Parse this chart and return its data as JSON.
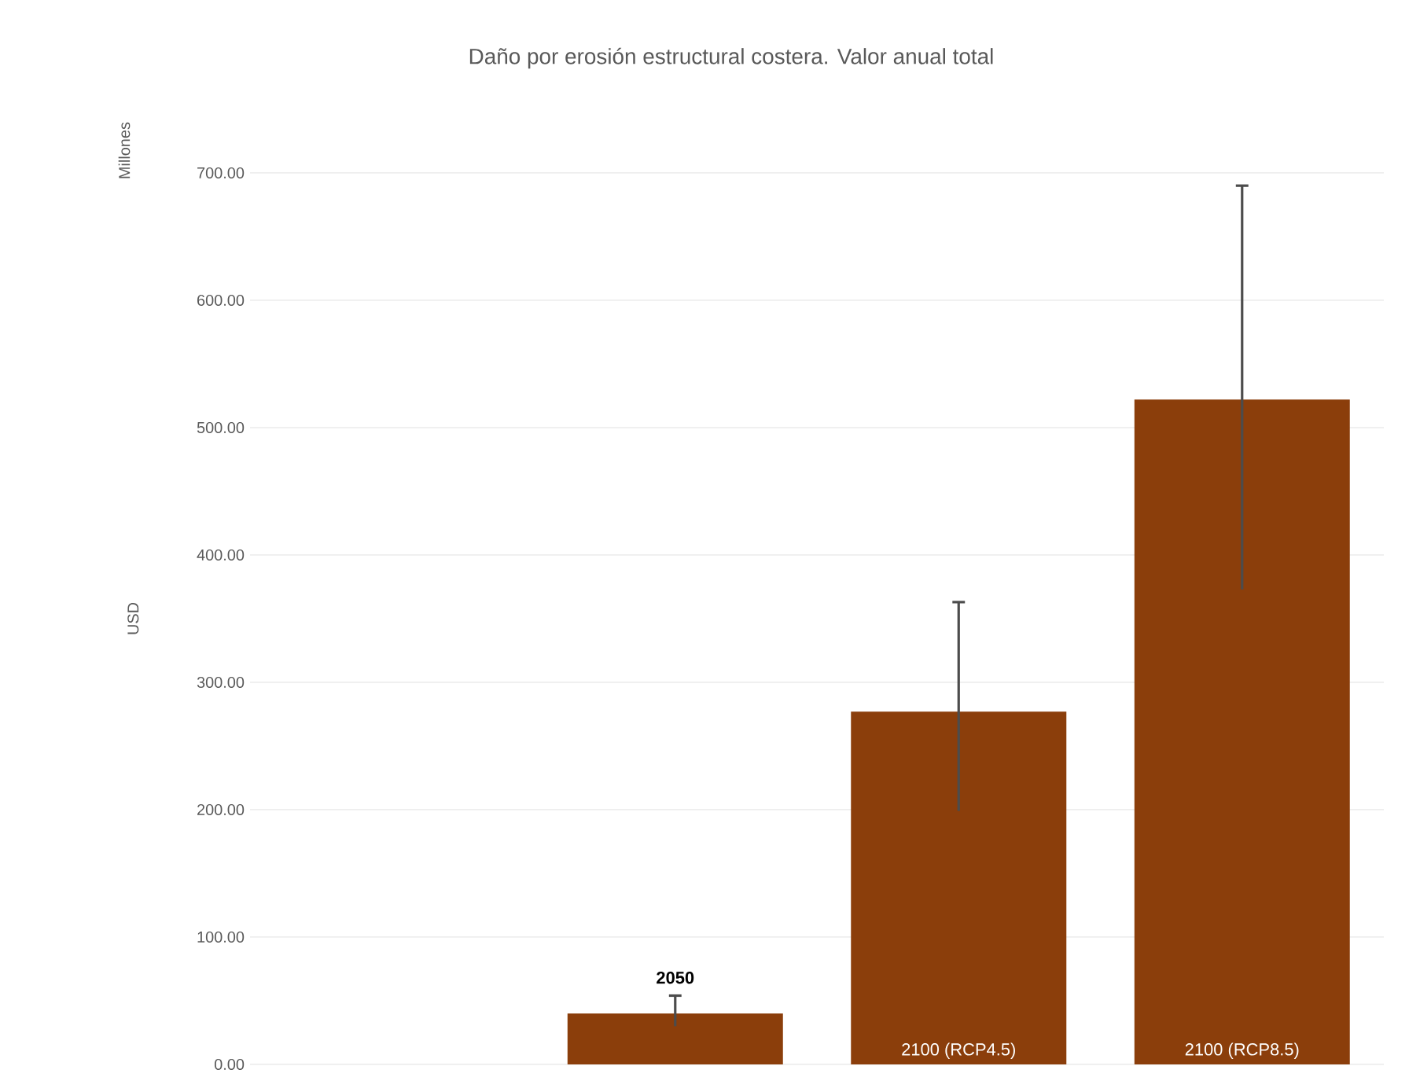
{
  "chart_data": {
    "type": "bar",
    "title": "Daño por erosión estructural costera. Valor anual total",
    "ylabel": "USD",
    "annotations": [
      "Millones"
    ],
    "categories": [
      null,
      "2050",
      "2100 (RCP4.5)",
      "2100 (RCP8.5)"
    ],
    "values": [
      null,
      40,
      277,
      522
    ],
    "errors": [
      null,
      [
        30,
        54
      ],
      [
        199,
        363
      ],
      [
        373,
        690
      ]
    ],
    "color": "#8b3e0b",
    "ylim": [
      0,
      700
    ],
    "yticks": [
      {
        "value": 0,
        "label": "0.00"
      },
      {
        "value": 100,
        "label": "100.00"
      },
      {
        "value": 200,
        "label": "200.00"
      },
      {
        "value": 300,
        "label": "300.00"
      },
      {
        "value": 400,
        "label": "400.00"
      },
      {
        "value": 500,
        "label": "500.00"
      },
      {
        "value": 600,
        "label": "600.00"
      },
      {
        "value": 700,
        "label": "700.00"
      }
    ],
    "grid": "y"
  }
}
